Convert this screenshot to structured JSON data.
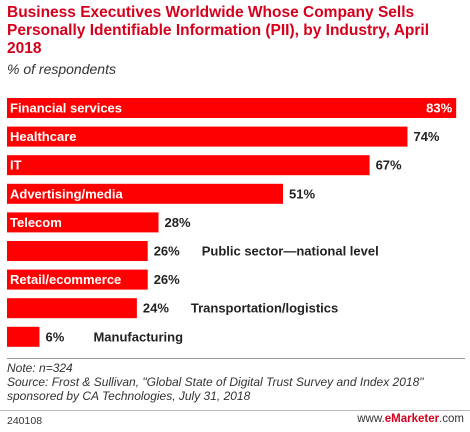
{
  "header": {
    "title": "Business Executives Worldwide Whose Company Sells Personally Identifiable Information (PII), by Industry, April 2018",
    "subtitle": "% of respondents"
  },
  "chart_data": {
    "type": "bar",
    "orientation": "horizontal",
    "categories": [
      "Financial services",
      "Healthcare",
      "IT",
      "Advertising/media",
      "Telecom",
      "Public sector—national level",
      "Retail/ecommerce",
      "Transportation/logistics",
      "Manufacturing"
    ],
    "values": [
      83,
      74,
      67,
      51,
      28,
      26,
      26,
      24,
      6
    ],
    "value_labels": [
      "83%",
      "74%",
      "67%",
      "51%",
      "28%",
      "26%",
      "26%",
      "24%",
      "6%"
    ],
    "label_placement": [
      "inside",
      "inside",
      "inside",
      "inside",
      "inside",
      "outside",
      "inside",
      "outside",
      "outside"
    ],
    "xlim": [
      0,
      85
    ],
    "grid": false,
    "bar_color": "#ff0000"
  },
  "footer": {
    "note": "Note: n=324",
    "source": "Source: Frost & Sullivan, \"Global State of Digital Trust Survey and Index 2018\" sponsored by CA Technologies, July 31, 2018",
    "chart_id": "240108",
    "brand_prefix": "www.",
    "brand_name": "eMarketer",
    "brand_suffix": ".com"
  }
}
